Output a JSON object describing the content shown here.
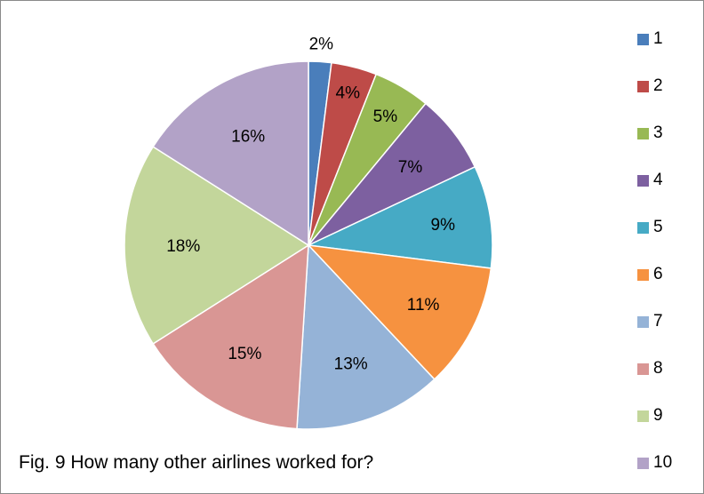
{
  "chart_data": {
    "type": "pie",
    "title": "",
    "caption": "Fig. 9 How many other airlines worked for?",
    "categories": [
      "1",
      "2",
      "3",
      "4",
      "5",
      "6",
      "7",
      "8",
      "9",
      "10"
    ],
    "values": [
      2,
      4,
      5,
      7,
      9,
      11,
      13,
      15,
      18,
      16
    ],
    "data_labels": [
      "2%",
      "4%",
      "5%",
      "7%",
      "9%",
      "11%",
      "13%",
      "15%",
      "18%",
      "16%"
    ],
    "colors": [
      "#4a7ebb",
      "#be4b48",
      "#98b954",
      "#7d60a0",
      "#46aac5",
      "#f69240",
      "#95b3d7",
      "#d99694",
      "#c3d69b",
      "#b2a2c7"
    ],
    "legend": "right",
    "start_angle_deg": 0,
    "direction": "clockwise"
  }
}
